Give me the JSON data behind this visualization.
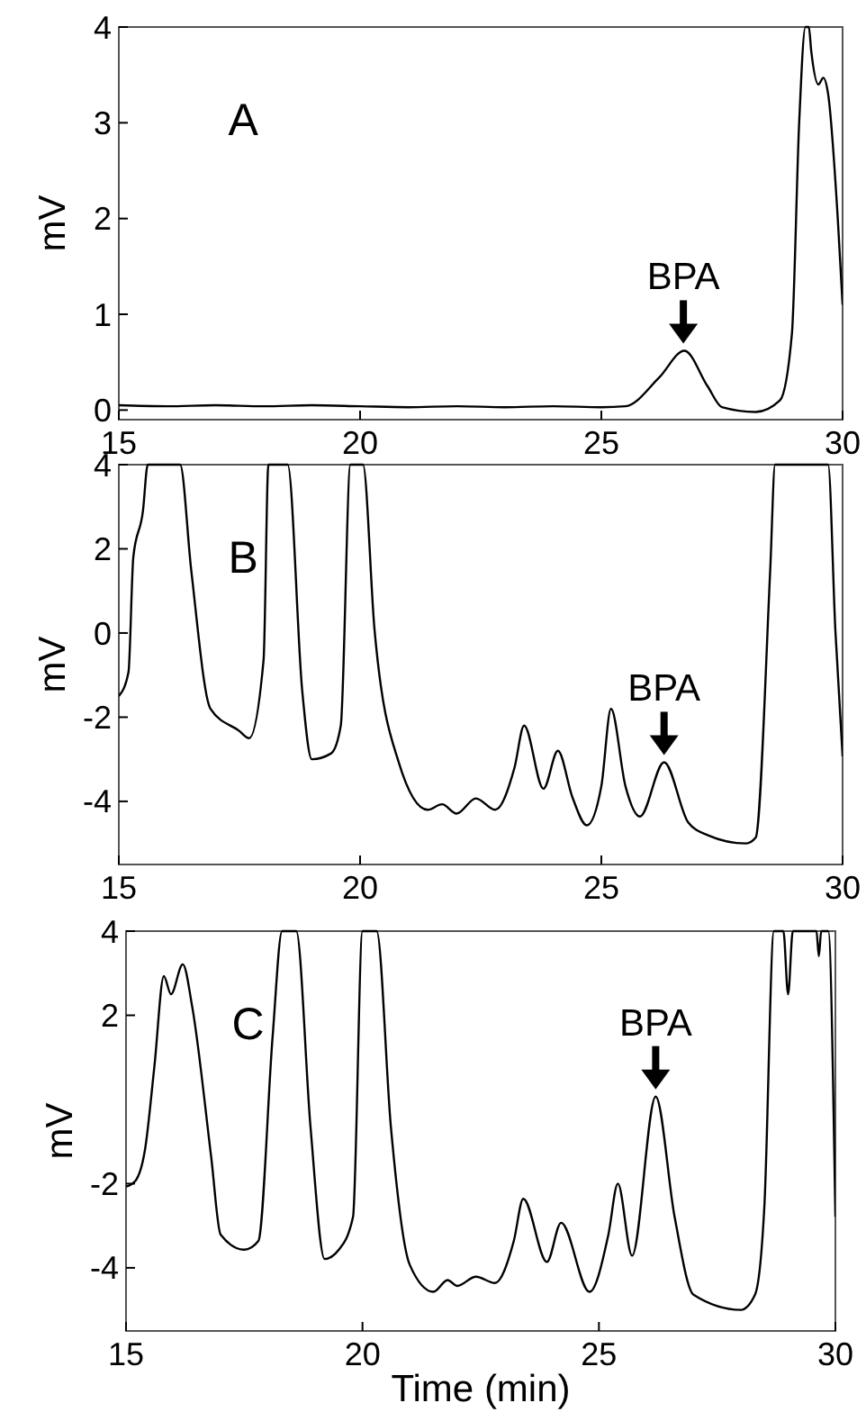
{
  "chart_data": [
    {
      "type": "line",
      "ylabel": "mV",
      "annotations": [
        "A",
        {
          "text": "BPA",
          "x": 26.7,
          "y": 0.62
        }
      ],
      "x": [
        15,
        16,
        17,
        18,
        19,
        20,
        21,
        22,
        23,
        24,
        25,
        25.5,
        26.2,
        26.72,
        27.2,
        27.5,
        28.2,
        28.7,
        28.95,
        29.1,
        29.23,
        29.3,
        29.35,
        29.5,
        29.6,
        29.7,
        29.9,
        30
      ],
      "series": [
        {
          "color": "#000000",
          "values": [
            0.05,
            0.04,
            0.05,
            0.04,
            0.05,
            0.04,
            0.03,
            0.04,
            0.03,
            0.04,
            0.03,
            0.04,
            0.34,
            0.62,
            0.25,
            0.03,
            -0.02,
            0.1,
            0.8,
            3,
            4,
            4,
            3.75,
            3.4,
            3.47,
            3.3,
            2.0,
            1.1
          ]
        }
      ],
      "xlim": [
        15,
        30
      ],
      "ylim": [
        -0.1,
        4
      ],
      "xticks": [
        15,
        20,
        25,
        30
      ],
      "yticks": [
        0,
        1,
        2,
        3,
        4
      ]
    },
    {
      "type": "line",
      "ylabel": "mV",
      "annotations": [
        "B",
        {
          "text": "BPA",
          "x": 26.3,
          "y": -3.07
        }
      ],
      "x": [
        15,
        15.2,
        15.3,
        15.5,
        15.6,
        16.27,
        16.5,
        16.9,
        17.5,
        17.7,
        18.0,
        18.1,
        18.5,
        18.8,
        19.0,
        19.4,
        19.6,
        19.8,
        20.06,
        20.3,
        20.8,
        21.4,
        21.7,
        22.0,
        22.4,
        22.8,
        23.2,
        23.4,
        23.8,
        24.1,
        24.4,
        24.7,
        25.0,
        25.2,
        25.5,
        25.8,
        26.3,
        26.8,
        27.2,
        28.0,
        28.2,
        28.5,
        28.6,
        29.7,
        29.85,
        30
      ],
      "series": [
        {
          "color": "#000000",
          "values": [
            -1.5,
            -0.93,
            1.8,
            2.9,
            4,
            4,
            1.5,
            -1.8,
            -2.33,
            -2.5,
            -0.64,
            4,
            4,
            -1.36,
            -3,
            -2.86,
            -2.2,
            4,
            4,
            0.07,
            -3.07,
            -4.2,
            -4.07,
            -4.29,
            -3.93,
            -4.2,
            -3.2,
            -2.2,
            -3.7,
            -2.8,
            -3.9,
            -4.57,
            -3.64,
            -1.8,
            -3.64,
            -4.36,
            -3.07,
            -4.5,
            -4.8,
            -5.0,
            -4.86,
            1.5,
            4,
            4,
            0.07,
            -2.93
          ]
        }
      ],
      "xlim": [
        15,
        30
      ],
      "ylim": [
        -5.5,
        4
      ],
      "xticks": [
        15,
        20,
        25,
        30
      ],
      "yticks": [
        4,
        2,
        0,
        -2,
        -4
      ]
    },
    {
      "type": "line",
      "xlabel": "Time (min)",
      "ylabel": "mV",
      "annotations": [
        "C",
        {
          "text": "BPA",
          "x": 26.2,
          "y": 0.07
        }
      ],
      "x": [
        15,
        15.2,
        15.4,
        15.6,
        15.8,
        15.95,
        16.2,
        16.4,
        16.8,
        17.0,
        17.5,
        17.8,
        18.1,
        18.3,
        18.6,
        18.9,
        19.2,
        19.5,
        19.8,
        20.0,
        20.3,
        20.6,
        21.0,
        21.5,
        21.8,
        22.0,
        22.4,
        22.8,
        23.2,
        23.4,
        23.9,
        24.2,
        24.8,
        25.2,
        25.4,
        25.7,
        26.2,
        26.6,
        27.0,
        28.0,
        28.3,
        28.5,
        28.7,
        28.9,
        29.0,
        29.1,
        29.6,
        29.65,
        29.7,
        29.85,
        30
      ],
      "series": [
        {
          "color": "#000000",
          "values": [
            -2.07,
            -1.93,
            -1.2,
            0.79,
            2.93,
            2.5,
            3.21,
            2.2,
            -1.36,
            -3.21,
            -3.57,
            -3.36,
            1.5,
            4,
            4,
            -0.64,
            -3.79,
            -3.57,
            -2.79,
            4,
            4,
            -0.64,
            -3.93,
            -4.57,
            -4.29,
            -4.43,
            -4.21,
            -4.36,
            -3.36,
            -2.36,
            -3.86,
            -2.93,
            -4.57,
            -3.21,
            -2,
            -3.71,
            0.07,
            -2.79,
            -4.64,
            -5.0,
            -4.64,
            -2.5,
            4,
            4,
            2.5,
            4,
            4,
            3.4,
            4,
            4,
            -2.79
          ]
        }
      ],
      "xlim": [
        15,
        30
      ],
      "ylim": [
        -5.5,
        4
      ],
      "xticks": [
        15,
        20,
        25,
        30
      ],
      "yticks": [
        4,
        2,
        -2,
        -4
      ]
    }
  ]
}
